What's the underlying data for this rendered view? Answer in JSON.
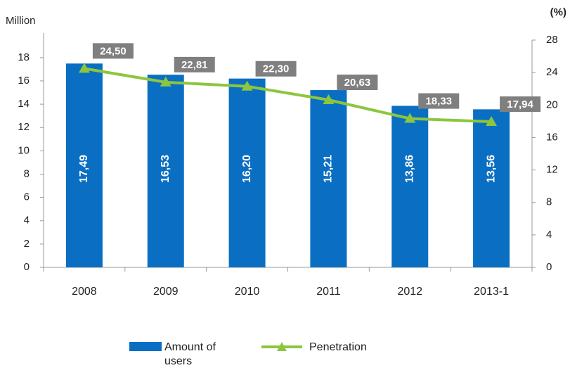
{
  "chart_data": {
    "type": "bar_line",
    "y_axis_label": "Million",
    "y2_axis_label": "(%)",
    "categories": [
      "2008",
      "2009",
      "2010",
      "2011",
      "2012",
      "2013-1"
    ],
    "series": [
      {
        "name": "Amount of users",
        "type": "bar",
        "color": "#0a6fc2",
        "values": [
          17.49,
          16.53,
          16.2,
          15.21,
          13.86,
          13.56
        ],
        "value_labels": [
          "17,49",
          "16,53",
          "16,20",
          "15,21",
          "13,86",
          "13,56"
        ]
      },
      {
        "name": "Penetration",
        "type": "line",
        "axis": "y2",
        "color": "#8cc63e",
        "values": [
          24.5,
          22.81,
          22.3,
          20.63,
          18.33,
          17.94
        ],
        "value_labels": [
          "24,50",
          "22,81",
          "22,30",
          "20,63",
          "18,33",
          "17,94"
        ]
      }
    ],
    "ylim": [
      0,
      19.5
    ],
    "yticks": [
      0,
      2,
      4,
      6,
      8,
      10,
      12,
      14,
      16,
      18
    ],
    "y2lim": [
      0,
      28
    ],
    "y2ticks": [
      0,
      4,
      8,
      12,
      16,
      20,
      24,
      28
    ],
    "legend": "bottom"
  }
}
